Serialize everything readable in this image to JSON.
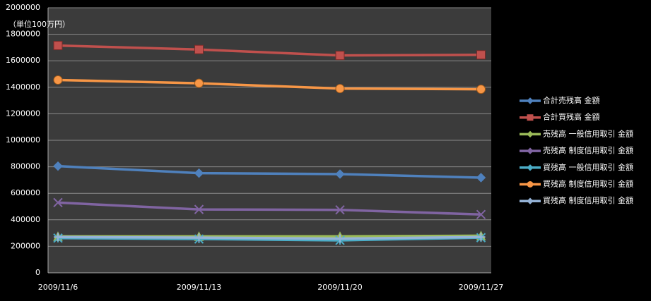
{
  "chart_data": {
    "type": "line",
    "annotation": "（単位100万円）",
    "categories": [
      "2009/11/6",
      "2009/11/13",
      "2009/11/20",
      "2009/11/27"
    ],
    "series": [
      {
        "name": "合計売残高 金額",
        "color": "#4f81bd",
        "marker": "diamond",
        "values": [
          805000,
          752000,
          745000,
          718000
        ]
      },
      {
        "name": "合計買残高 金額",
        "color": "#c0504d",
        "marker": "square",
        "values": [
          1715000,
          1685000,
          1640000,
          1645000
        ]
      },
      {
        "name": "売残高 一般信用取引 金額",
        "color": "#9bbb59",
        "marker": "triangle",
        "values": [
          275000,
          275000,
          275000,
          280000
        ]
      },
      {
        "name": "売残高 制度信用取引 金額",
        "color": "#8064a2",
        "marker": "x",
        "values": [
          530000,
          478000,
          475000,
          440000
        ]
      },
      {
        "name": "買残高 一般信用取引 金額",
        "color": "#4bacc6",
        "marker": "star",
        "values": [
          262000,
          255000,
          245000,
          265000
        ]
      },
      {
        "name": "買残高 制度信用取引 金額",
        "color": "#f79646",
        "marker": "circle",
        "values": [
          1455000,
          1430000,
          1390000,
          1385000
        ]
      },
      {
        "name": "買残高 制度信用取引 金額",
        "color": "#95b3d7",
        "marker": "plus",
        "values": [
          270000,
          265000,
          258000,
          270000
        ]
      }
    ],
    "ylim": [
      0,
      2000000
    ],
    "yticks": [
      0,
      200000,
      400000,
      600000,
      800000,
      1000000,
      1200000,
      1400000,
      1600000,
      1800000,
      2000000
    ],
    "grid": true
  }
}
